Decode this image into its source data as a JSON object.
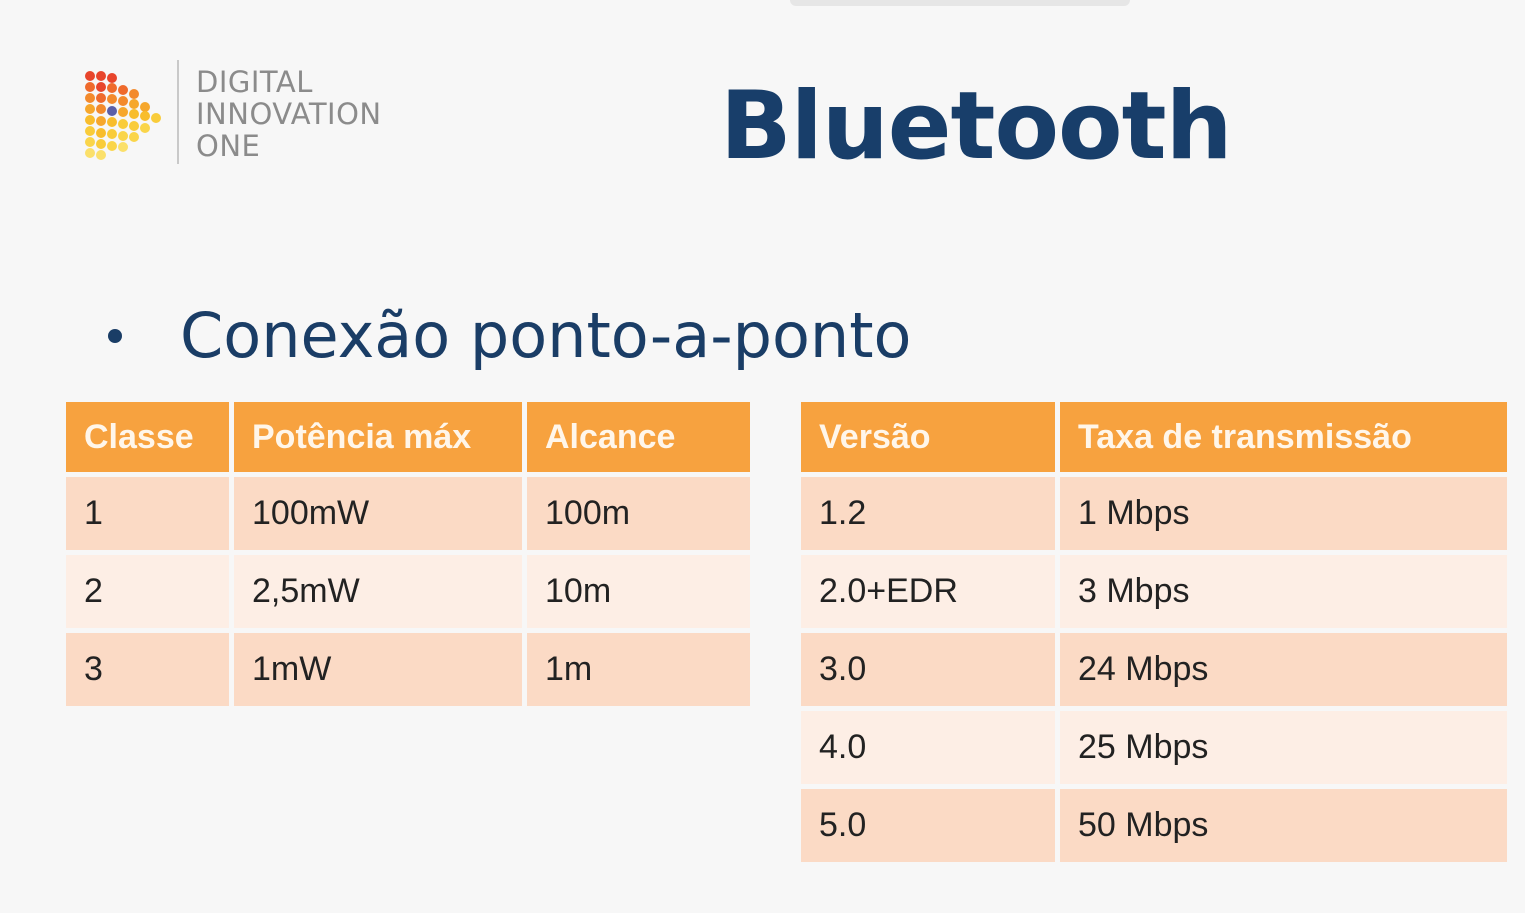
{
  "logo": {
    "lines": [
      "DIGITAL",
      "INNOVATION",
      "ONE"
    ]
  },
  "title": "Bluetooth",
  "bullet": "Conexão ponto-a-ponto",
  "class_table": {
    "headers": [
      "Classe",
      "Potência máx",
      "Alcance"
    ],
    "rows": [
      [
        "1",
        "100mW",
        "100m"
      ],
      [
        "2",
        "2,5mW",
        "10m"
      ],
      [
        "3",
        "1mW",
        "1m"
      ]
    ]
  },
  "version_table": {
    "headers": [
      "Versão",
      "Taxa de transmissão"
    ],
    "rows": [
      [
        "1.2",
        "1 Mbps"
      ],
      [
        "2.0+EDR",
        "3 Mbps"
      ],
      [
        "3.0",
        "24 Mbps"
      ],
      [
        "4.0",
        "25 Mbps"
      ],
      [
        "5.0",
        "50 Mbps"
      ]
    ]
  },
  "colors": {
    "title": "#183e6a",
    "header_fill": "#f7a23f",
    "row_dark": "#fbdac5",
    "row_light": "#fdeee5"
  }
}
